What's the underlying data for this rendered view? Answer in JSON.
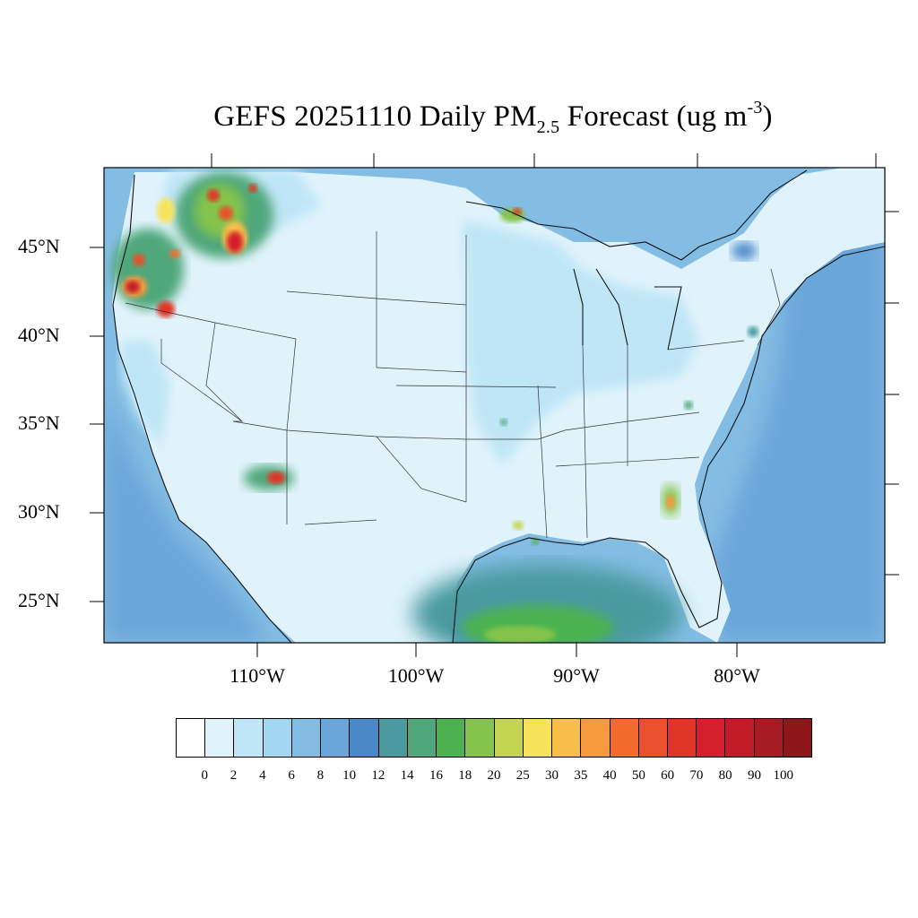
{
  "title": {
    "main": "GEFS 20251110 Daily PM",
    "subscript": "2.5",
    "after_sub": " Forecast (ug m",
    "superscript": "-3",
    "close": ")"
  },
  "lat_labels": [
    "45°N",
    "40°N",
    "35°N",
    "30°N",
    "25°N"
  ],
  "lon_labels": [
    "110°W",
    "100°W",
    "90°W",
    "80°W"
  ],
  "colorbar": {
    "colors": [
      "#ffffff",
      "#e0f3fb",
      "#bfe6f6",
      "#a2d7f1",
      "#84bde3",
      "#6ba6da",
      "#4a88c8",
      "#4a9aa0",
      "#4fa77a",
      "#4cb24f",
      "#84c44c",
      "#c3d451",
      "#f7e35a",
      "#f9bd49",
      "#f79a3d",
      "#f46c2d",
      "#e9502c",
      "#e13528",
      "#d51f2c",
      "#c11c27",
      "#a71b22",
      "#8c1619"
    ],
    "labels": [
      "0",
      "2",
      "4",
      "6",
      "8",
      "10",
      "12",
      "14",
      "16",
      "18",
      "20",
      "25",
      "30",
      "35",
      "40",
      "50",
      "60",
      "70",
      "80",
      "90",
      "100"
    ]
  },
  "field_colors": {
    "land": "#e0f3fb",
    "land_mid": "#bfe6f6",
    "ocean": "#84bde3",
    "ocean_dark": "#6ba6da",
    "gulf": "#4a9aa0",
    "gulf_green": "#4cb24f",
    "gulf_core": "#84c44c"
  }
}
